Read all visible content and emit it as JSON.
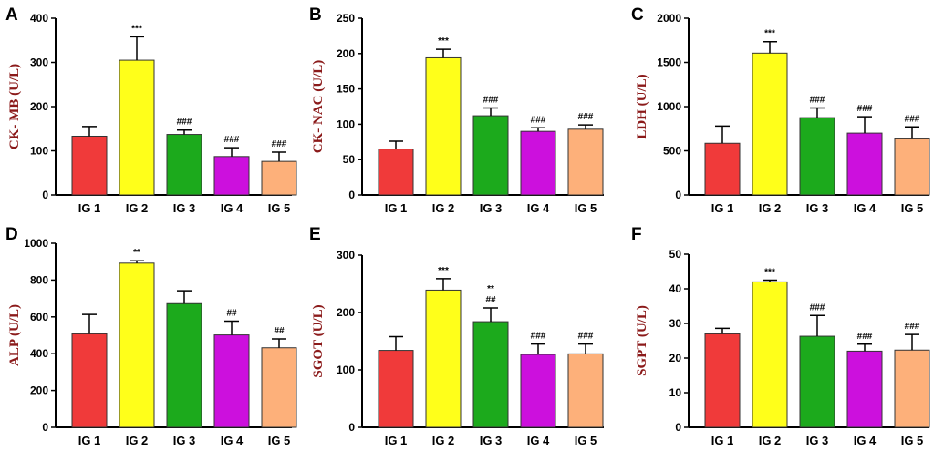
{
  "chart_data": [
    {
      "panel": "A",
      "type": "bar",
      "ylabel": "CK- MB (U/L)",
      "categories": [
        "IG 1",
        "IG 2",
        "IG 3",
        "IG 4",
        "IG 5"
      ],
      "values": [
        133,
        305,
        137,
        87,
        76
      ],
      "errors": [
        22,
        53,
        10,
        20,
        21
      ],
      "annotations": [
        [
          ""
        ],
        [
          "***"
        ],
        [
          "###"
        ],
        [
          "###"
        ],
        [
          "###"
        ]
      ],
      "ylim": [
        0,
        400
      ],
      "yticks": [
        0,
        100,
        200,
        300,
        400
      ]
    },
    {
      "panel": "B",
      "type": "bar",
      "ylabel": "CK- NAC (U/L)",
      "categories": [
        "IG 1",
        "IG 2",
        "IG 3",
        "IG 4",
        "IG 5"
      ],
      "values": [
        65,
        194,
        112,
        90,
        93
      ],
      "errors": [
        11,
        12,
        11,
        5,
        6
      ],
      "annotations": [
        [
          ""
        ],
        [
          "***"
        ],
        [
          "###"
        ],
        [
          "###"
        ],
        [
          "###"
        ]
      ],
      "ylim": [
        0,
        250
      ],
      "yticks": [
        0,
        50,
        100,
        150,
        200,
        250
      ]
    },
    {
      "panel": "C",
      "type": "bar",
      "ylabel": "LDH (U/L)",
      "categories": [
        "IG 1",
        "IG 2",
        "IG 3",
        "IG 4",
        "IG 5"
      ],
      "values": [
        585,
        1605,
        875,
        700,
        635
      ],
      "errors": [
        195,
        130,
        110,
        185,
        135
      ],
      "annotations": [
        [
          ""
        ],
        [
          "***"
        ],
        [
          "###"
        ],
        [
          "###"
        ],
        [
          "###"
        ]
      ],
      "ylim": [
        0,
        2000
      ],
      "yticks": [
        0,
        500,
        1000,
        1500,
        2000
      ]
    },
    {
      "panel": "D",
      "type": "bar",
      "ylabel": "ALP (U/L)",
      "categories": [
        "IG 1",
        "IG 2",
        "IG 3",
        "IG 4",
        "IG 5"
      ],
      "values": [
        508,
        892,
        672,
        502,
        432
      ],
      "errors": [
        105,
        13,
        70,
        75,
        48
      ],
      "annotations": [
        [
          ""
        ],
        [
          "**"
        ],
        [
          ""
        ],
        [
          "##"
        ],
        [
          "##"
        ]
      ],
      "ylim": [
        0,
        1000
      ],
      "yticks": [
        0,
        200,
        400,
        600,
        800,
        1000
      ]
    },
    {
      "panel": "E",
      "type": "bar",
      "ylabel": "SGOT (U/L)",
      "categories": [
        "IG 1",
        "IG 2",
        "IG 3",
        "IG 4",
        "IG 5"
      ],
      "values": [
        134,
        239,
        184,
        127,
        128
      ],
      "errors": [
        24,
        20,
        24,
        18,
        17
      ],
      "annotations": [
        [
          ""
        ],
        [
          "***"
        ],
        [
          "**",
          "##"
        ],
        [
          "###"
        ],
        [
          "###"
        ]
      ],
      "ylim": [
        0,
        300
      ],
      "yticks": [
        0,
        100,
        200,
        300
      ]
    },
    {
      "panel": "F",
      "type": "bar",
      "ylabel": "SGPT (U/L)",
      "categories": [
        "IG 1",
        "IG 2",
        "IG 3",
        "IG 4",
        "IG 5"
      ],
      "values": [
        27,
        42,
        26.3,
        22,
        22.3
      ],
      "errors": [
        1.6,
        0.5,
        6,
        2,
        4.5
      ],
      "annotations": [
        [
          ""
        ],
        [
          "***"
        ],
        [
          "###"
        ],
        [
          "###"
        ],
        [
          "###"
        ]
      ],
      "ylim": [
        0,
        50
      ],
      "yticks": [
        0,
        10,
        20,
        30,
        40,
        50
      ]
    }
  ],
  "colors": {
    "bars": [
      "#f03a3a",
      "#ffff1a",
      "#1caa1c",
      "#cc10dd",
      "#fdb07a"
    ],
    "ylabel": "#8b1a1a"
  }
}
